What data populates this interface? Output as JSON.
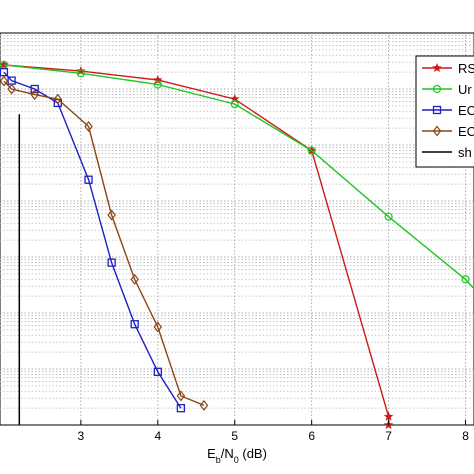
{
  "chart_data": {
    "type": "line",
    "title": "",
    "xlabel_main": "E",
    "xlabel_sub1": "b",
    "xlabel_mid": "/N",
    "xlabel_sub2": "0",
    "xlabel_tail": " (dB)",
    "ylabel": "",
    "xlim": [
      2,
      8.4
    ],
    "ylim": [
      -7,
      0
    ],
    "y_scale": "log",
    "x_ticks": [
      3,
      4,
      5,
      6,
      7,
      8
    ],
    "grid": true,
    "legend_position": "top-right",
    "series": [
      {
        "name": "RS",
        "color": "#cc1a1a",
        "marker": "star",
        "x": [
          2,
          3,
          4,
          5,
          6,
          7,
          7.0
        ],
        "y": [
          -0.57,
          -0.68,
          -0.84,
          -1.18,
          -2.1,
          -6.85,
          -7.0
        ]
      },
      {
        "name": "Ur",
        "color": "#22c422",
        "marker": "circle",
        "x": [
          2,
          3,
          4,
          5,
          6,
          7,
          8,
          8.4
        ],
        "y": [
          -0.57,
          -0.72,
          -0.92,
          -1.27,
          -2.1,
          -3.28,
          -4.4,
          -5.0
        ]
      },
      {
        "name": "EC",
        "color": "#1f1fc4",
        "marker": "square",
        "x": [
          2.0,
          2.1,
          2.4,
          2.7,
          3.1,
          3.4,
          3.7,
          4.0,
          4.3
        ],
        "y": [
          -0.7,
          -0.85,
          -1.0,
          -1.25,
          -2.62,
          -4.1,
          -5.2,
          -6.05,
          -6.7
        ]
      },
      {
        "name": "EC",
        "color": "#8b4513",
        "marker": "diamond",
        "x": [
          2.0,
          2.1,
          2.4,
          2.7,
          3.1,
          3.4,
          3.7,
          4.0,
          4.3,
          4.6
        ],
        "y": [
          -0.86,
          -1.0,
          -1.1,
          -1.18,
          -1.67,
          -3.25,
          -4.4,
          -5.25,
          -6.48,
          -6.65
        ]
      },
      {
        "name": "sh",
        "color": "#000000",
        "marker": "none",
        "x": [
          2.2,
          2.2
        ],
        "y": [
          -7,
          -1.45
        ]
      }
    ]
  }
}
